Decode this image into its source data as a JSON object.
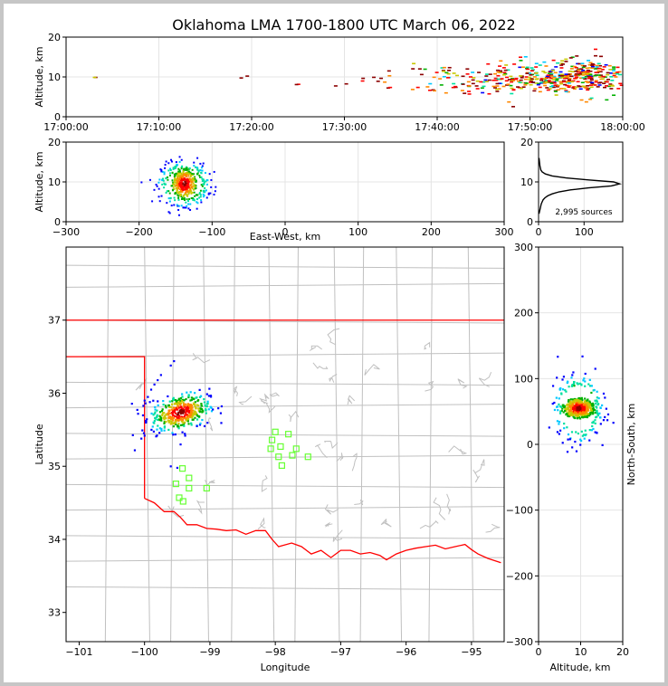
{
  "title": "Oklahoma LMA 1700-1800 UTC March 06, 2022",
  "colors": {
    "density": [
      "#0000ff",
      "#00c8ff",
      "#00e0a0",
      "#00b000",
      "#c8c800",
      "#ff8800",
      "#ff0000",
      "#8b0000"
    ],
    "state_border": "#ff0000",
    "county_lines": "#c0c0c0",
    "stations": "#66ff33",
    "histogram": "#000000"
  },
  "chart_data": [
    {
      "id": "time-height",
      "type": "heatmap",
      "xlabel": "",
      "ylabel": "Altitude, km",
      "xlim": [
        "17:00:00",
        "18:00:00"
      ],
      "ylim": [
        0,
        20
      ],
      "xticks": [
        "17:00:00",
        "17:10:00",
        "17:20:00",
        "17:30:00",
        "17:40:00",
        "17:50:00",
        "18:00:00"
      ],
      "yticks": [
        0,
        10,
        20
      ],
      "clusters": [
        {
          "t": 3,
          "alt": 10,
          "spread_t": 0.2,
          "spread_alt": 0.3,
          "count": 2,
          "intensity": 0
        },
        {
          "t": 19.5,
          "alt": 10,
          "spread_t": 0.3,
          "spread_alt": 0.5,
          "count": 2,
          "intensity": 0
        },
        {
          "t": 25,
          "alt": 8.5,
          "spread_t": 0.2,
          "spread_alt": 0.3,
          "count": 2,
          "intensity": 0
        },
        {
          "t": 33,
          "alt": 9,
          "spread_t": 1.5,
          "spread_alt": 1.0,
          "count": 10,
          "intensity": 0
        },
        {
          "t": 41,
          "alt": 9,
          "spread_t": 3.0,
          "spread_alt": 2.0,
          "count": 50,
          "intensity": 1
        },
        {
          "t": 47,
          "alt": 9.5,
          "spread_t": 2.5,
          "spread_alt": 2.0,
          "count": 90,
          "intensity": 2
        },
        {
          "t": 52,
          "alt": 9.5,
          "spread_t": 2.0,
          "spread_alt": 2.0,
          "count": 130,
          "intensity": 3
        },
        {
          "t": 56.5,
          "alt": 10,
          "spread_t": 2.2,
          "spread_alt": 2.2,
          "count": 220,
          "intensity": 4
        }
      ]
    },
    {
      "id": "ew-altitude",
      "type": "heatmap",
      "xlabel": "East-West, km",
      "ylabel": "Altitude, km",
      "xlim": [
        -300,
        300
      ],
      "ylim": [
        0,
        20
      ],
      "xticks": [
        -300,
        -200,
        -100,
        0,
        100,
        200,
        300
      ],
      "yticks": [
        0,
        10,
        20
      ],
      "center": {
        "x": -138,
        "alt": 9.5
      },
      "spread": {
        "x": 12,
        "alt": 2.5
      },
      "count": 520
    },
    {
      "id": "altitude-histogram",
      "type": "line",
      "xlabel": "",
      "ylabel": "",
      "xlim": [
        0,
        185
      ],
      "ylim": [
        0,
        20
      ],
      "xticks": [
        0,
        100
      ],
      "yticks": [
        0,
        10,
        20
      ],
      "annotation": "2,995 sources",
      "x": [
        1,
        2,
        3,
        4,
        5,
        6,
        8,
        10,
        14,
        20,
        30,
        45,
        70,
        110,
        160,
        178,
        165,
        110,
        60,
        30,
        15,
        8,
        5,
        3,
        2,
        1
      ],
      "y": [
        2,
        2.5,
        3,
        3.5,
        4,
        4.5,
        5,
        5.5,
        6,
        6.5,
        7,
        7.5,
        8,
        8.5,
        9,
        9.5,
        10,
        10.5,
        11,
        11.5,
        12,
        12.5,
        13,
        14,
        15,
        16
      ]
    },
    {
      "id": "plan-view",
      "type": "scatter",
      "xlabel": "Longitude",
      "ylabel": "Latitude",
      "xlim": [
        -101.2,
        -94.5
      ],
      "ylim": [
        32.6,
        38.0
      ],
      "xticks": [
        -101,
        -100,
        -99,
        -98,
        -97,
        -96,
        -95
      ],
      "yticks": [
        33,
        34,
        35,
        36,
        37
      ],
      "stations": [
        [
          -99.42,
          34.97
        ],
        [
          -99.32,
          34.84
        ],
        [
          -99.52,
          34.76
        ],
        [
          -99.32,
          34.7
        ],
        [
          -99.05,
          34.7
        ],
        [
          -99.47,
          34.57
        ],
        [
          -99.41,
          34.52
        ],
        [
          -98.0,
          35.47
        ],
        [
          -97.8,
          35.44
        ],
        [
          -98.05,
          35.36
        ],
        [
          -97.92,
          35.27
        ],
        [
          -98.07,
          35.24
        ],
        [
          -97.68,
          35.24
        ],
        [
          -97.95,
          35.13
        ],
        [
          -97.74,
          35.15
        ],
        [
          -97.5,
          35.13
        ],
        [
          -97.9,
          35.01
        ]
      ],
      "main_cluster": {
        "lon": -99.45,
        "lat": 35.74,
        "spread_lon": 0.22,
        "spread_lat": 0.12,
        "count": 420
      },
      "tail_points": [
        [
          -99.55,
          36.44
        ],
        [
          -99.6,
          36.38
        ],
        [
          -99.75,
          36.25
        ],
        [
          -99.8,
          36.18
        ],
        [
          -99.85,
          36.12
        ],
        [
          -99.9,
          36.05
        ],
        [
          -99.95,
          35.95
        ],
        [
          -100.0,
          35.9
        ],
        [
          -99.92,
          35.88
        ],
        [
          -100.1,
          35.72
        ],
        [
          -99.98,
          35.6
        ],
        [
          -100.0,
          35.42
        ],
        [
          -100.05,
          35.38
        ],
        [
          -100.15,
          35.22
        ],
        [
          -99.5,
          34.98
        ],
        [
          -99.6,
          35.0
        ],
        [
          -99.38,
          35.42
        ],
        [
          -99.45,
          35.3
        ],
        [
          -99.2,
          35.55
        ]
      ]
    },
    {
      "id": "altitude-ns",
      "type": "heatmap",
      "xlabel": "Altitude, km",
      "ylabel": "North-South, km",
      "xlim": [
        0,
        20
      ],
      "ylim": [
        -300,
        300
      ],
      "xticks": [
        0,
        10,
        20
      ],
      "yticks": [
        -300,
        -200,
        -100,
        0,
        100,
        200,
        300
      ],
      "center": {
        "alt": 9.5,
        "y": 55
      },
      "spread": {
        "alt": 2.5,
        "y": 10
      },
      "count": 520
    }
  ]
}
